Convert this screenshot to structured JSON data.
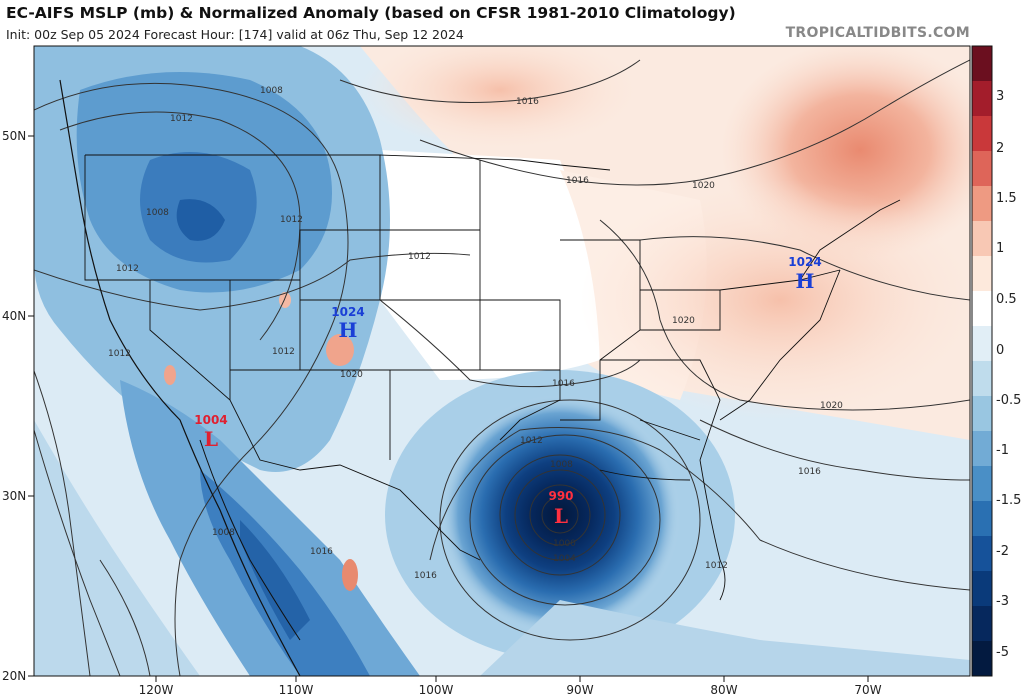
{
  "header": {
    "title": "EC-AIFS MSLP (mb) & Normalized Anomaly (based on CFSR 1981-2010 Climatology)",
    "subtitle": "Init: 00z Sep 05 2024   Forecast Hour: [174]   valid at 06z Thu, Sep 12 2024",
    "credit": "TROPICALTIDBITS.COM"
  },
  "axes": {
    "lat_labels": [
      "50N",
      "40N",
      "30N",
      "20N"
    ],
    "lon_labels": [
      "120W",
      "110W",
      "100W",
      "90W",
      "80W",
      "70W"
    ]
  },
  "colorbar": {
    "labels": [
      "3",
      "2",
      "1.5",
      "1",
      "0.5",
      "0",
      "-0.5",
      "-1",
      "-1.5",
      "-2",
      "-3",
      "-5"
    ],
    "colors": [
      "#6b0f1f",
      "#a31d2b",
      "#c9383a",
      "#de6559",
      "#ee9a82",
      "#f8c8b4",
      "#fde9dc",
      "#ffffff",
      "#e1eef6",
      "#bfdcec",
      "#99c6e1",
      "#72abd5",
      "#4a8fc6",
      "#2a70b2",
      "#16529a",
      "#0a3a7a",
      "#06285d",
      "#031a40"
    ]
  },
  "pressure_systems": [
    {
      "type": "H",
      "value": "1024",
      "color": "#1a3fd6"
    },
    {
      "type": "H",
      "value": "1024",
      "color": "#1a3fd6"
    },
    {
      "type": "L",
      "value": "1004",
      "color": "#e02030"
    },
    {
      "type": "L",
      "value": "990",
      "color": "#e02030"
    }
  ],
  "isobar_labels": [
    "1008",
    "1012",
    "1012",
    "1008",
    "1012",
    "1012",
    "1012",
    "1016",
    "1016",
    "1020",
    "1016",
    "1020",
    "1020",
    "1016",
    "1012",
    "1008",
    "1000",
    "1004",
    "1012",
    "1012",
    "1016",
    "1008",
    "1016",
    "1020"
  ]
}
